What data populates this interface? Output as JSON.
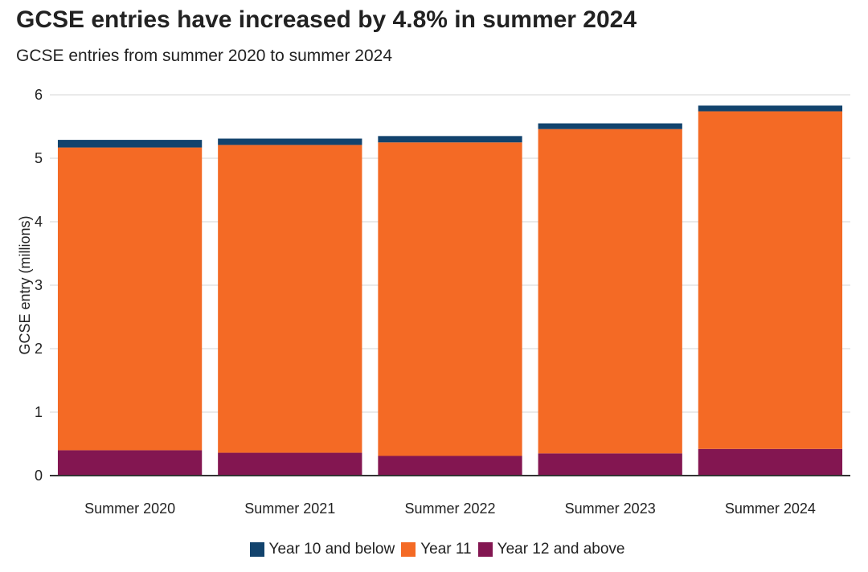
{
  "title": "GCSE entries have increased by 4.8% in summer 2024",
  "subtitle": "GCSE entries from summer 2020 to summer 2024",
  "chart_data": {
    "type": "bar",
    "stacked": true,
    "categories": [
      "Summer 2020",
      "Summer 2021",
      "Summer 2022",
      "Summer 2023",
      "Summer 2024"
    ],
    "series": [
      {
        "name": "Year 12 and above",
        "color": "#831651",
        "values": [
          0.4,
          0.36,
          0.31,
          0.35,
          0.42
        ]
      },
      {
        "name": "Year 11",
        "color": "#f46a25",
        "values": [
          4.77,
          4.85,
          4.94,
          5.11,
          5.32
        ]
      },
      {
        "name": "Year 10 and below",
        "color": "#12436d",
        "values": [
          0.12,
          0.1,
          0.1,
          0.09,
          0.09
        ]
      }
    ],
    "legend_order": [
      "Year 10 and below",
      "Year 11",
      "Year 12 and above"
    ],
    "ylabel": "GCSE entry (millions)",
    "xlabel": "",
    "ylim": [
      0,
      6
    ],
    "yticks": [
      "0",
      "1",
      "2",
      "3",
      "4",
      "5",
      "6"
    ],
    "grid": true,
    "legend_position": "bottom"
  }
}
